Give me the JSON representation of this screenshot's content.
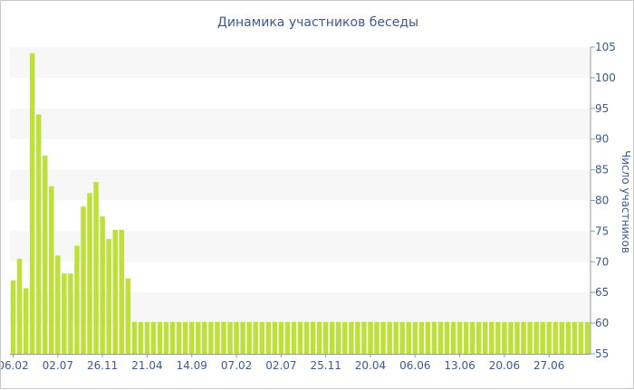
{
  "chart_data": {
    "type": "bar",
    "title": "Динамика участников беседы",
    "xlabel": "",
    "ylabel": "Число участников",
    "ylim": [
      55,
      105
    ],
    "yticks": [
      55,
      60,
      65,
      70,
      75,
      80,
      85,
      90,
      95,
      100,
      105
    ],
    "y_axis_position": "right",
    "grid": "horizontal alternating bands",
    "xtick_labels": [
      "06.02",
      "02.07",
      "26.11",
      "21.04",
      "14.09",
      "07.02",
      "02.07",
      "25.11",
      "20.04",
      "06.06",
      "13.06",
      "20.06",
      "27.06"
    ],
    "xtick_indices": [
      0,
      7,
      14,
      21,
      28,
      35,
      42,
      49,
      56,
      63,
      70,
      77,
      84
    ],
    "values": [
      67,
      70.5,
      65.7,
      104,
      94,
      87.3,
      82.3,
      71,
      68.1,
      68.1,
      72.6,
      79,
      81.2,
      83,
      77.4,
      73.7,
      75.2,
      75.2,
      67.3,
      60.2,
      60.2,
      60.2,
      60.2,
      60.2,
      60.2,
      60.2,
      60.2,
      60.2,
      60.2,
      60.2,
      60.2,
      60.2,
      60.2,
      60.2,
      60.2,
      60.2,
      60.2,
      60.2,
      60.2,
      60.2,
      60.2,
      60.2,
      60.2,
      60.2,
      60.2,
      60.2,
      60.2,
      60.2,
      60.2,
      60.2,
      60.2,
      60.2,
      60.2,
      60.2,
      60.2,
      60.2,
      60.2,
      60.2,
      60.2,
      60.2,
      60.2,
      60.2,
      60.2,
      60.2,
      60.2,
      60.2,
      60.2,
      60.2,
      60.2,
      60.2,
      60.2,
      60.2,
      60.2,
      60.2,
      60.2,
      60.2,
      60.2,
      60.2,
      60.2,
      60.2,
      60.2,
      60.2,
      60.2,
      60.2,
      60.2,
      60.2,
      60.2,
      60.2,
      60.2,
      60.2,
      60.2
    ],
    "colors": {
      "bar": "#bde03a",
      "band": "#f7f7f7",
      "text": "#3d5a8f",
      "axis": "#999999"
    }
  }
}
